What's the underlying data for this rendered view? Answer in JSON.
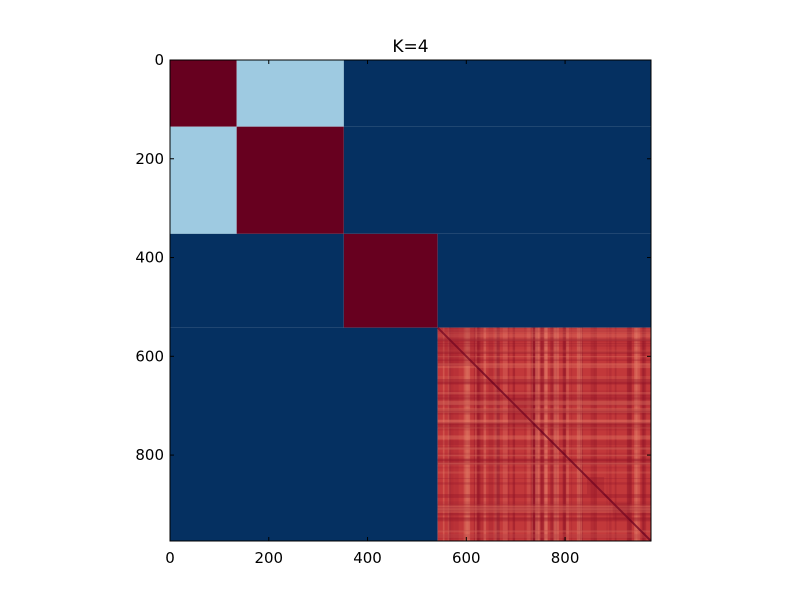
{
  "chart_data": {
    "type": "heatmap",
    "title": "K=4",
    "xlabel": "",
    "ylabel": "",
    "matrix_size": 974,
    "xlim": [
      0,
      974
    ],
    "ylim": [
      974,
      0
    ],
    "x_ticks": [
      0,
      200,
      400,
      600,
      800
    ],
    "y_ticks": [
      0,
      200,
      400,
      600,
      800
    ],
    "x_tick_labels": [
      "0",
      "200",
      "400",
      "600",
      "800"
    ],
    "y_tick_labels": [
      "0",
      "200",
      "400",
      "600",
      "800"
    ],
    "cluster_boundaries": [
      0,
      135,
      352,
      542,
      974
    ],
    "colormap": "RdBu_r",
    "grid": false,
    "legend": "none",
    "blocks": [
      {
        "x": [
          0,
          135
        ],
        "y": [
          0,
          135
        ],
        "value": 1.0
      },
      {
        "x": [
          135,
          352
        ],
        "y": [
          0,
          135
        ],
        "value": 0.25
      },
      {
        "x": [
          352,
          974
        ],
        "y": [
          0,
          135
        ],
        "value": 0.0
      },
      {
        "x": [
          0,
          135
        ],
        "y": [
          135,
          352
        ],
        "value": 0.25
      },
      {
        "x": [
          135,
          352
        ],
        "y": [
          135,
          352
        ],
        "value": 1.0
      },
      {
        "x": [
          352,
          974
        ],
        "y": [
          135,
          352
        ],
        "value": 0.0
      },
      {
        "x": [
          0,
          352
        ],
        "y": [
          352,
          542
        ],
        "value": 0.0
      },
      {
        "x": [
          352,
          542
        ],
        "y": [
          352,
          542
        ],
        "value": 1.0
      },
      {
        "x": [
          542,
          974
        ],
        "y": [
          352,
          542
        ],
        "value": 0.0
      },
      {
        "x": [
          0,
          542
        ],
        "y": [
          542,
          974
        ],
        "value": 0.0
      },
      {
        "x": [
          542,
          974
        ],
        "y": [
          542,
          974
        ],
        "value": 0.85,
        "textured": true
      }
    ]
  },
  "colors": {
    "low": "#053061",
    "mid_low": "#9ecae1",
    "high": "#67001f",
    "textured_base": "#c2383a",
    "textured_light": "#e7806a",
    "textured_dark": "#8f1327"
  }
}
